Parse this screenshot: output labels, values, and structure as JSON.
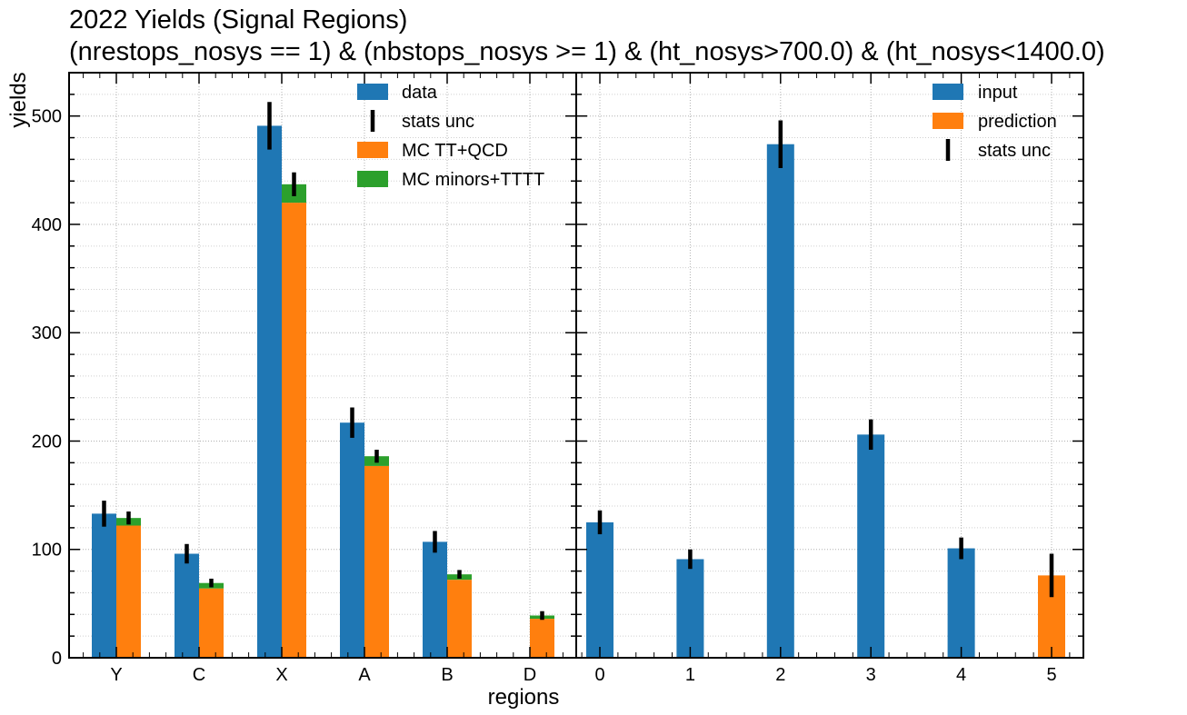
{
  "chart_data": [
    {
      "panel": "left",
      "type": "bar",
      "title": "2022 Yields (Signal Regions)",
      "subtitle": "(nrestops_nosys == 1) & (nbstops_nosys >= 1) & (ht_nosys>700.0) & (ht_nosys<1400.0)",
      "xlabel": "regions",
      "ylabel": "yields",
      "ylim": [
        0,
        540
      ],
      "yticks": [
        0,
        100,
        200,
        300,
        400,
        500
      ],
      "categories": [
        "Y",
        "C",
        "X",
        "A",
        "B",
        "D"
      ],
      "series": [
        {
          "name": "data",
          "color": "#1f77b4",
          "values": [
            133,
            96,
            491,
            217,
            107,
            0
          ],
          "unc": [
            12,
            9,
            22,
            14,
            10,
            0
          ]
        },
        {
          "name": "MC TT+QCD",
          "color": "#ff7f0e",
          "values": [
            122,
            64,
            420,
            177,
            72,
            36
          ],
          "stacked": true
        },
        {
          "name": "MC minors+TTTT",
          "color": "#2ca02c",
          "values": [
            7,
            5,
            17,
            9,
            5,
            3
          ],
          "stacked": true,
          "unc": [
            6,
            4,
            11,
            6,
            4,
            4
          ]
        }
      ],
      "unc_label": "stats unc",
      "grid": true,
      "legend_position": "upper-right"
    },
    {
      "panel": "right",
      "type": "bar",
      "ylim": [
        0,
        540
      ],
      "categories": [
        "0",
        "1",
        "2",
        "3",
        "4",
        "5"
      ],
      "series": [
        {
          "name": "input",
          "color": "#1f77b4",
          "values": [
            125,
            91,
            474,
            206,
            101,
            null
          ],
          "unc": [
            11,
            9,
            22,
            14,
            10,
            null
          ]
        },
        {
          "name": "prediction",
          "color": "#ff7f0e",
          "values": [
            null,
            null,
            null,
            null,
            null,
            76
          ],
          "unc": [
            null,
            null,
            null,
            null,
            null,
            20
          ]
        }
      ],
      "unc_label": "stats unc",
      "grid": true,
      "legend_position": "upper-right"
    }
  ]
}
